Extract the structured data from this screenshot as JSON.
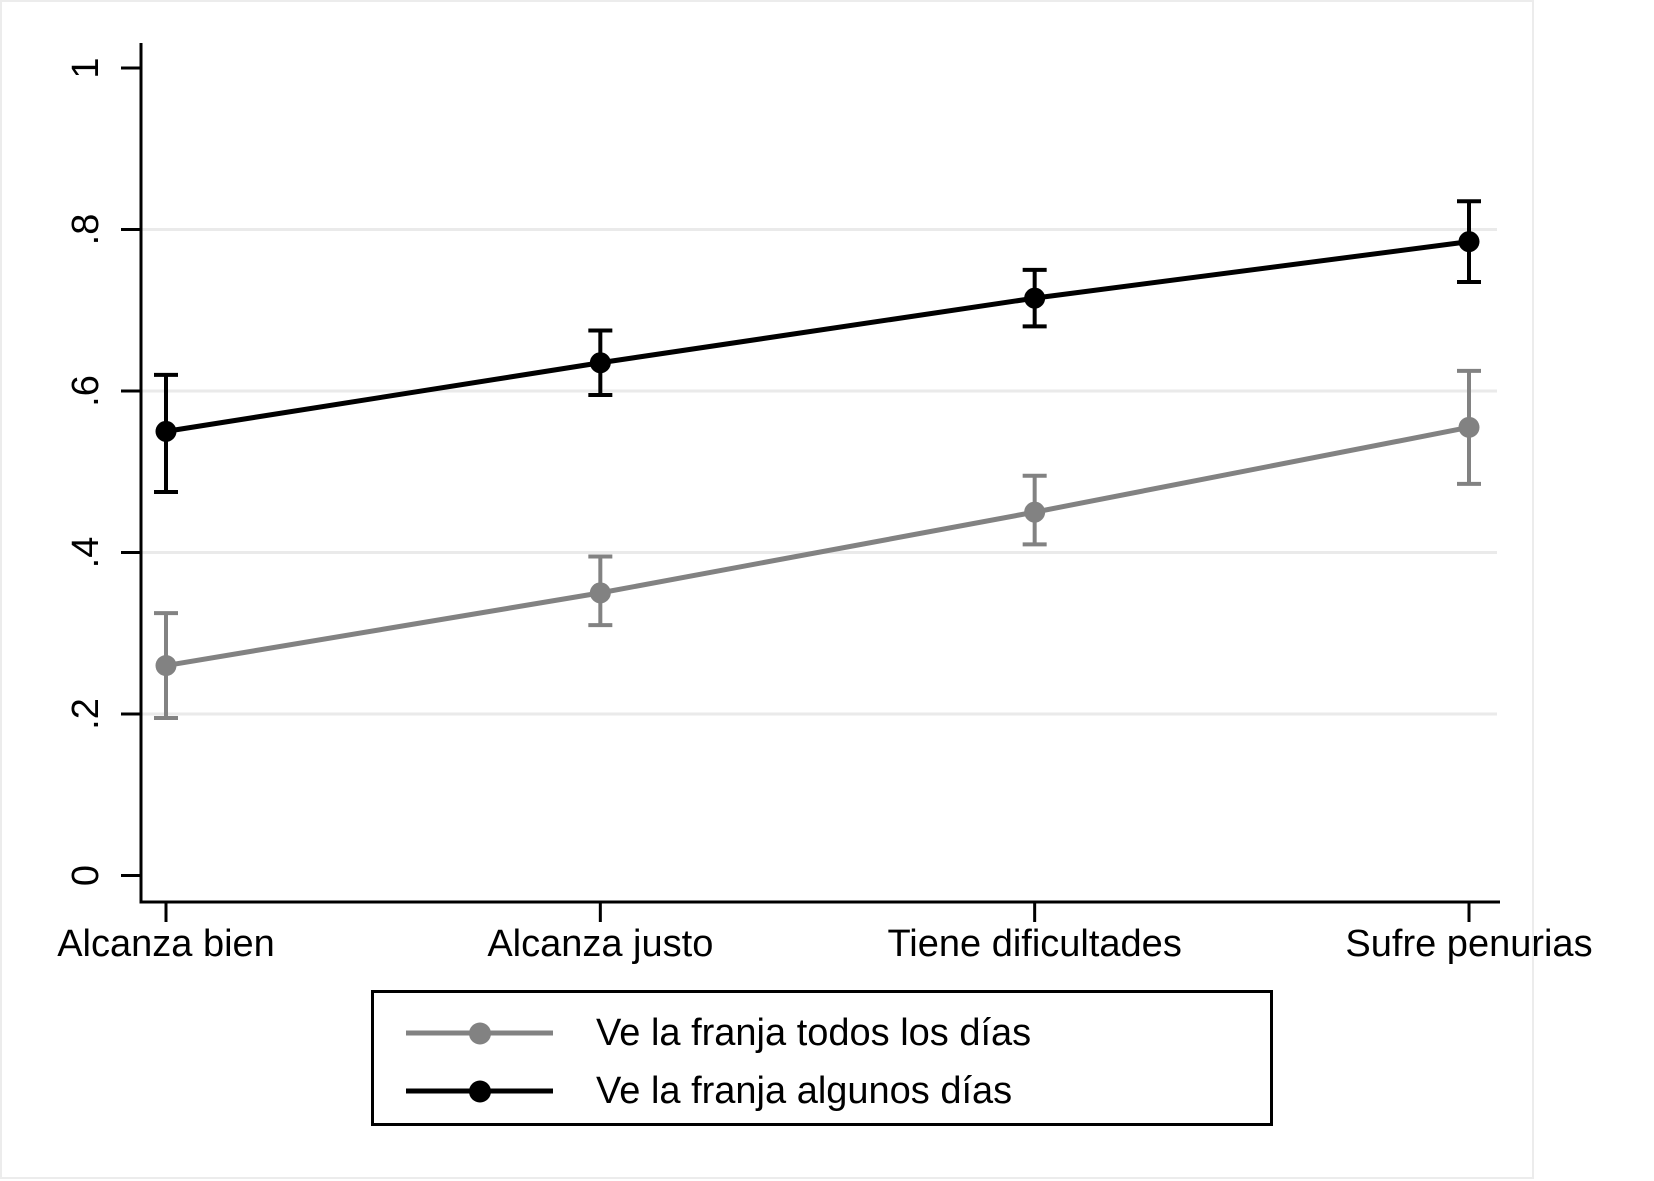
{
  "figure": {
    "background_color": "#ffffff",
    "region_border_color": "#ececec",
    "gridline_color": "#eaeaea",
    "axis_color": "#000000"
  },
  "chart_data": {
    "type": "line",
    "title": "",
    "xlabel": "",
    "ylabel": "",
    "grid": true,
    "legend_position": "bottom",
    "categories": [
      "Alcanza bien",
      "Alcanza justo",
      "Tiene dificultades",
      "Sufre penurias"
    ],
    "ylim": [
      0,
      1
    ],
    "yticks": [
      0,
      0.2,
      0.4,
      0.6,
      0.8,
      1
    ],
    "ytick_labels": [
      "0",
      ".2",
      ".4",
      ".6",
      ".8",
      "1"
    ],
    "gridline_values": [
      0.2,
      0.4,
      0.6,
      0.8
    ],
    "series": [
      {
        "name": "Ve la franja todos los días",
        "color": "#828282",
        "marker": "circle",
        "values": [
          0.26,
          0.35,
          0.45,
          0.555
        ],
        "ci_low": [
          0.195,
          0.31,
          0.41,
          0.485
        ],
        "ci_high": [
          0.325,
          0.395,
          0.495,
          0.625
        ]
      },
      {
        "name": "Ve la franja algunos días",
        "color": "#000000",
        "marker": "circle",
        "values": [
          0.55,
          0.635,
          0.715,
          0.785
        ],
        "ci_low": [
          0.475,
          0.595,
          0.68,
          0.735
        ],
        "ci_high": [
          0.62,
          0.675,
          0.75,
          0.835
        ]
      }
    ]
  }
}
